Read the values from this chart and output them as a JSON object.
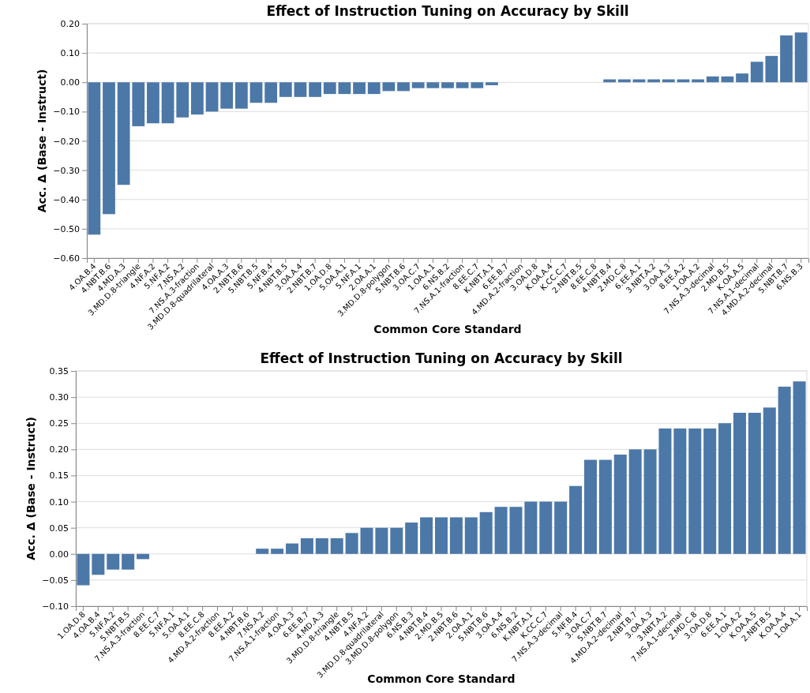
{
  "chart_data": [
    {
      "type": "bar",
      "title": "Effect of Instruction Tuning on Accuracy by Skill",
      "xlabel": "Common Core Standard",
      "ylabel": "Acc. Δ (Base - Instruct)",
      "color": "#4c78a8",
      "grid": "y",
      "categories": [
        "4.OA.B.4",
        "4.NBT.B.6",
        "4.MD.A.3",
        "3.MD.D.8-triangle",
        "4.NF.A.2",
        "5.NF.A.2",
        "7.NS.A.2",
        "7.NS.A.3-fraction",
        "3.MD.D.8-quadrilateral",
        "4.OA.A.3",
        "2.NBT.B.6",
        "5.NBT.B.5",
        "5.NF.B.4",
        "4.NBT.B.5",
        "3.OA.A.4",
        "2.NBT.B.7",
        "1.OA.D.8",
        "5.OA.A.1",
        "5.NF.A.1",
        "2.OA.A.1",
        "3.MD.D.8-polygon",
        "5.NBT.B.6",
        "3.OA.C.7",
        "1.OA.A.1",
        "6.NS.B.2",
        "7.NS.A.1-fraction",
        "8.EE.C.7",
        "K.NBT.A.1",
        "6.EE.B.7",
        "4.MD.A.2-fraction",
        "3.OA.D.8",
        "K.OA.A.4",
        "K.CC.C.7",
        "2.NBT.B.5",
        "8.EE.C.8",
        "4.NBT.B.4",
        "2.MD.C.8",
        "6.EE.A.1",
        "3.NBT.A.2",
        "3.OA.A.3",
        "8.EE.A.2",
        "1.OA.A.2",
        "7.NS.A.3-decimal",
        "2.MD.B.5",
        "K.OA.A.5",
        "7.NS.A.1-decimal",
        "4.MD.A.2-decimal",
        "5.NBT.B.7",
        "6.NS.B.3"
      ],
      "values": [
        -0.52,
        -0.45,
        -0.35,
        -0.15,
        -0.14,
        -0.14,
        -0.12,
        -0.11,
        -0.1,
        -0.09,
        -0.09,
        -0.07,
        -0.07,
        -0.05,
        -0.05,
        -0.05,
        -0.04,
        -0.04,
        -0.04,
        -0.04,
        -0.03,
        -0.03,
        -0.02,
        -0.02,
        -0.02,
        -0.02,
        -0.02,
        -0.01,
        0,
        0,
        0,
        0,
        0,
        0,
        0,
        0.01,
        0.01,
        0.01,
        0.01,
        0.01,
        0.01,
        0.01,
        0.02,
        0.02,
        0.03,
        0.07,
        0.09,
        0.16,
        0.17
      ],
      "ylim": [
        -0.6,
        0.2
      ],
      "yticks": [
        {
          "value": -0.6,
          "label": "−0.60"
        },
        {
          "value": -0.5,
          "label": "−0.50"
        },
        {
          "value": -0.4,
          "label": "−0.40"
        },
        {
          "value": -0.3,
          "label": "−0.30"
        },
        {
          "value": -0.2,
          "label": "−0.20"
        },
        {
          "value": -0.1,
          "label": "−0.10"
        },
        {
          "value": 0,
          "label": "0.00"
        },
        {
          "value": 0.1,
          "label": "0.10"
        },
        {
          "value": 0.2,
          "label": "0.20"
        }
      ]
    },
    {
      "type": "bar",
      "title": "Effect of Instruction Tuning on Accuracy by Skill",
      "xlabel": "Common Core Standard",
      "ylabel": "Acc. Δ (Base - Instruct)",
      "color": "#4c78a8",
      "grid": "y",
      "categories": [
        "1.OA.D.8",
        "4.OA.B.4",
        "5.NF.A.2",
        "5.NBT.B.5",
        "7.NS.A.3-fraction",
        "8.EE.C.7",
        "5.NF.A.1",
        "5.OA.A.1",
        "8.EE.C.8",
        "4.MD.A.2-fraction",
        "8.EE.A.2",
        "4.NBT.B.6",
        "7.NS.A.2",
        "7.NS.A.1-fraction",
        "4.OA.A.3",
        "6.EE.B.7",
        "4.MD.A.3",
        "3.MD.D.8-triangle",
        "4.NBT.B.5",
        "4.NF.A.2",
        "3.MD.D.8-quadrilateral",
        "3.MD.D.8-polygon",
        "6.NS.B.3",
        "4.NBT.B.4",
        "2.MD.B.5",
        "2.NBT.B.6",
        "2.OA.A.1",
        "5.NBT.B.6",
        "3.OA.A.4",
        "6.NS.B.2",
        "K.NBT.A.1",
        "K.CC.C.7",
        "7.NS.A.3-decimal",
        "5.NF.B.4",
        "3.OA.C.7",
        "5.NBT.B.7",
        "4.MD.A.2-decimal",
        "2.NBT.B.7",
        "3.OA.A.3",
        "3.NBT.A.2",
        "7.NS.A.1-decimal",
        "2.MD.C.8",
        "3.OA.D.8",
        "6.EE.A.1",
        "1.OA.A.2",
        "K.OA.A.5",
        "2.NBT.B.5",
        "K.OA.A.4",
        "1.OA.A.1"
      ],
      "values": [
        -0.06,
        -0.04,
        -0.03,
        -0.03,
        -0.01,
        0,
        0,
        0,
        0,
        0,
        0,
        0,
        0.01,
        0.01,
        0.02,
        0.03,
        0.03,
        0.03,
        0.04,
        0.05,
        0.05,
        0.05,
        0.06,
        0.07,
        0.07,
        0.07,
        0.07,
        0.08,
        0.09,
        0.09,
        0.1,
        0.1,
        0.1,
        0.13,
        0.18,
        0.18,
        0.19,
        0.2,
        0.2,
        0.24,
        0.24,
        0.24,
        0.24,
        0.25,
        0.27,
        0.27,
        0.28,
        0.32,
        0.33
      ],
      "ylim": [
        -0.1,
        0.35
      ],
      "yticks": [
        {
          "value": -0.1,
          "label": "−0.10"
        },
        {
          "value": -0.05,
          "label": "−0.05"
        },
        {
          "value": 0,
          "label": "0.00"
        },
        {
          "value": 0.05,
          "label": "0.05"
        },
        {
          "value": 0.1,
          "label": "0.10"
        },
        {
          "value": 0.15,
          "label": "0.15"
        },
        {
          "value": 0.2,
          "label": "0.20"
        },
        {
          "value": 0.25,
          "label": "0.25"
        },
        {
          "value": 0.3,
          "label": "0.30"
        },
        {
          "value": 0.35,
          "label": "0.35"
        }
      ]
    }
  ]
}
